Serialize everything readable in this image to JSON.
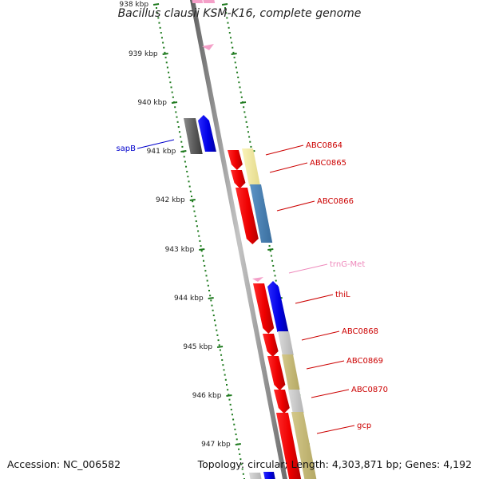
{
  "title": "Bacillus clausii KSM-K16, complete genome",
  "footer": {
    "accession": "Accession: NC_006582",
    "topology": "Topology: circular; Length: 4,303,871 bp; Genes: 4,192"
  },
  "ruler": {
    "unit": "kbp",
    "ticks": [
      "938 kbp",
      "939 kbp",
      "940 kbp",
      "941 kbp",
      "942 kbp",
      "943 kbp",
      "944 kbp",
      "945 kbp",
      "946 kbp",
      "947 kbp"
    ]
  },
  "genes": [
    {
      "name": "sapB",
      "color": "#0000cc"
    },
    {
      "name": "ABC0864",
      "color": "#cc0000"
    },
    {
      "name": "ABC0865",
      "color": "#cc0000"
    },
    {
      "name": "ABC0866",
      "color": "#cc0000"
    },
    {
      "name": "trnG-Met",
      "color": "#ee88bb"
    },
    {
      "name": "thiL",
      "color": "#cc0000"
    },
    {
      "name": "ABC0868",
      "color": "#cc0000"
    },
    {
      "name": "ABC0869",
      "color": "#cc0000"
    },
    {
      "name": "ABC0870",
      "color": "#cc0000"
    },
    {
      "name": "gcp",
      "color": "#cc0000"
    }
  ],
  "colors": {
    "ruler": "#1e7a1e",
    "backbone": "#8a8a8a",
    "cds_red": "#ff0000",
    "cds_blue": "#0000ee",
    "cds_grey": "#666666",
    "cog_yellow": "#f1e9a0",
    "cog_steelblue": "#4a82b4",
    "cog_lightgrey": "#c8c8c8",
    "cog_khaki": "#c8bc7a",
    "trna_pink": "#f4a0c8"
  }
}
